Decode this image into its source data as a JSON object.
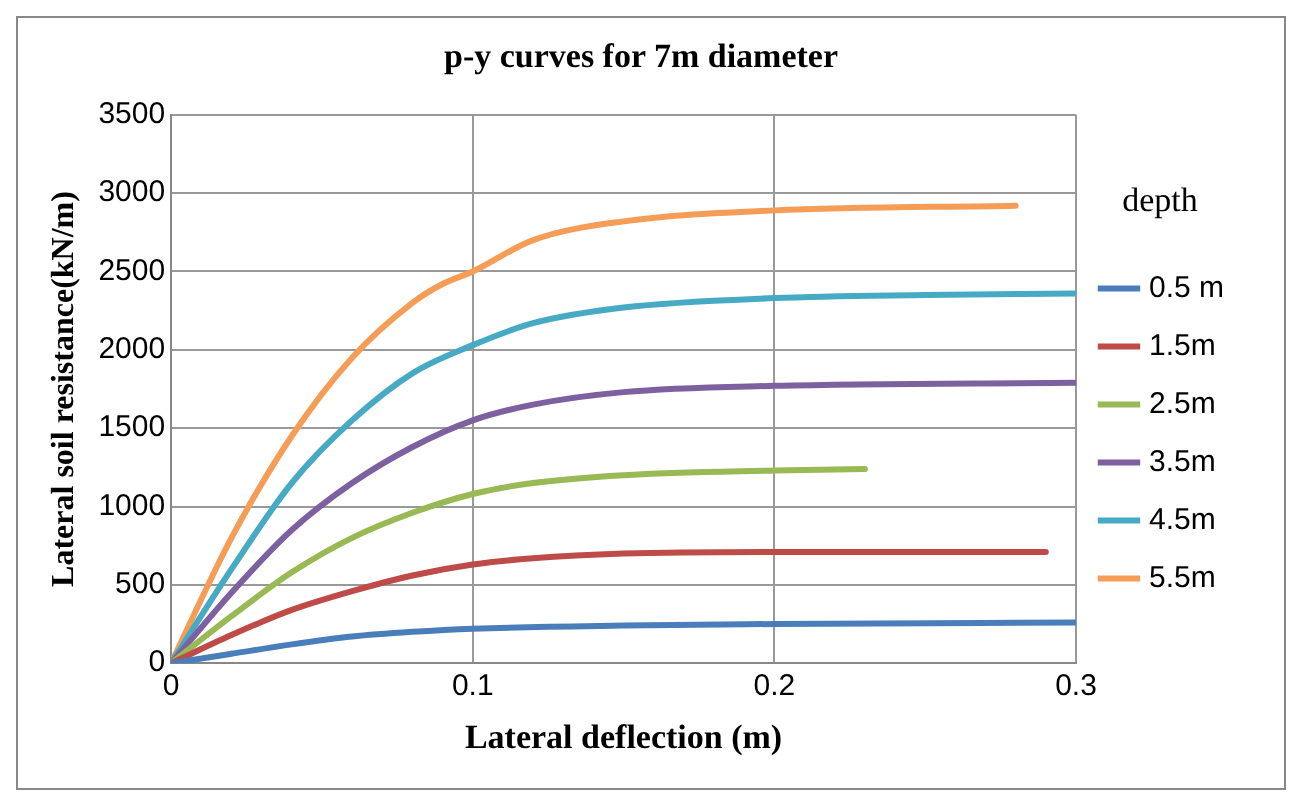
{
  "chart_data": {
    "type": "line",
    "title": "p-y curves for 7m diameter",
    "xlabel": "Lateral deflection (m)",
    "ylabel": "Lateral soil resistance(kN/m)",
    "legend_title": "depth",
    "xlim": [
      0,
      0.3
    ],
    "xticks": [
      0,
      0.1,
      0.2,
      0.3
    ],
    "ylim": [
      0,
      3500
    ],
    "yticks": [
      0,
      500,
      1000,
      1500,
      2000,
      2500,
      3000,
      3500
    ],
    "grid": true,
    "legend": "right",
    "marker": "none",
    "line_style": "solid",
    "series": [
      {
        "name": "0.5 m",
        "color": "#4a7ebb",
        "x": [
          0,
          0.02,
          0.04,
          0.06,
          0.08,
          0.1,
          0.15,
          0.2,
          0.3
        ],
        "values": [
          0,
          60,
          120,
          170,
          200,
          220,
          240,
          250,
          260
        ]
      },
      {
        "name": "1.5m",
        "color": "#be4b48",
        "x": [
          0,
          0.02,
          0.04,
          0.06,
          0.08,
          0.1,
          0.12,
          0.15,
          0.2,
          0.29
        ],
        "values": [
          0,
          180,
          340,
          460,
          560,
          630,
          670,
          700,
          710,
          710
        ]
      },
      {
        "name": "2.5m",
        "color": "#98b954",
        "x": [
          0,
          0.02,
          0.04,
          0.06,
          0.08,
          0.1,
          0.12,
          0.15,
          0.2,
          0.23
        ],
        "values": [
          0,
          300,
          580,
          800,
          960,
          1080,
          1150,
          1200,
          1230,
          1240
        ]
      },
      {
        "name": "3.5m",
        "color": "#7d60a0",
        "x": [
          0,
          0.02,
          0.04,
          0.06,
          0.08,
          0.1,
          0.12,
          0.15,
          0.2,
          0.3
        ],
        "values": [
          0,
          450,
          850,
          1150,
          1380,
          1550,
          1650,
          1730,
          1770,
          1790
        ]
      },
      {
        "name": "4.5m",
        "color": "#46aac5",
        "x": [
          0,
          0.02,
          0.04,
          0.06,
          0.08,
          0.1,
          0.12,
          0.15,
          0.2,
          0.25,
          0.3
        ],
        "values": [
          0,
          600,
          1150,
          1550,
          1850,
          2030,
          2170,
          2270,
          2330,
          2350,
          2360
        ]
      },
      {
        "name": "5.5m",
        "color": "#f59d56",
        "x": [
          0,
          0.02,
          0.04,
          0.06,
          0.08,
          0.09,
          0.1,
          0.12,
          0.15,
          0.2,
          0.28
        ],
        "values": [
          0,
          800,
          1450,
          1950,
          2300,
          2420,
          2500,
          2700,
          2820,
          2890,
          2920
        ]
      }
    ]
  }
}
